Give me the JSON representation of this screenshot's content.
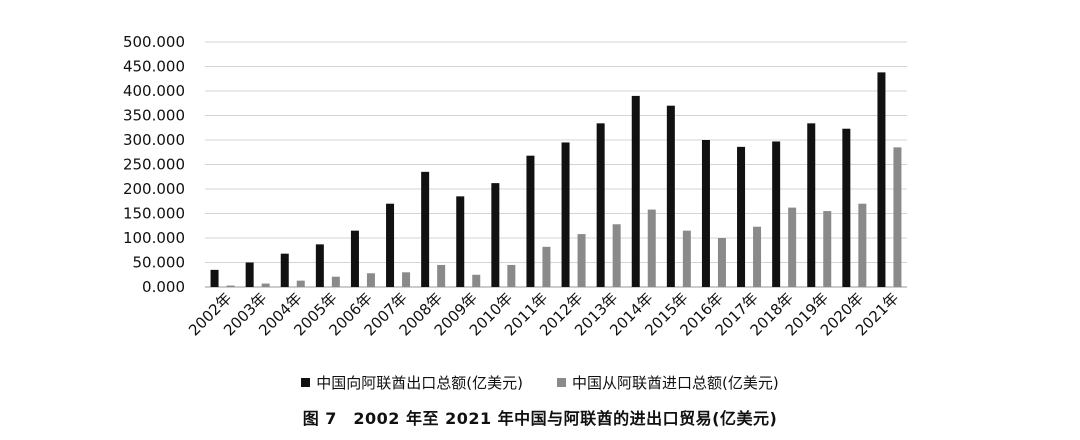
{
  "chart_data": {
    "type": "bar",
    "categories": [
      "2002年",
      "2003年",
      "2004年",
      "2005年",
      "2006年",
      "2007年",
      "2008年",
      "2009年",
      "2010年",
      "2011年",
      "2012年",
      "2013年",
      "2014年",
      "2015年",
      "2016年",
      "2017年",
      "2018年",
      "2019年",
      "2020年",
      "2021年"
    ],
    "series": [
      {
        "name": "中国向阿联酋出口总额(亿美元)",
        "color": "#111111",
        "values": [
          35,
          50,
          68,
          87,
          115,
          170,
          235,
          185,
          212,
          268,
          295,
          334,
          390,
          370,
          300,
          286,
          297,
          334,
          323,
          438
        ]
      },
      {
        "name": "中国从阿联酋进口总额(亿美元)",
        "color": "#8a8a8a",
        "values": [
          3,
          7,
          13,
          21,
          28,
          30,
          45,
          25,
          45,
          82,
          108,
          128,
          158,
          115,
          100,
          123,
          162,
          155,
          170,
          285
        ]
      }
    ],
    "yticks": [
      "0.000",
      "50.000",
      "100.000",
      "150.000",
      "200.000",
      "250.000",
      "300.000",
      "350.000",
      "400.000",
      "450.000",
      "500.000"
    ],
    "ylim": [
      0,
      500
    ],
    "grid": true,
    "legend_position": "bottom"
  },
  "caption": "图 7　2002 年至 2021 年中国与阿联酋的进出口贸易(亿美元)"
}
